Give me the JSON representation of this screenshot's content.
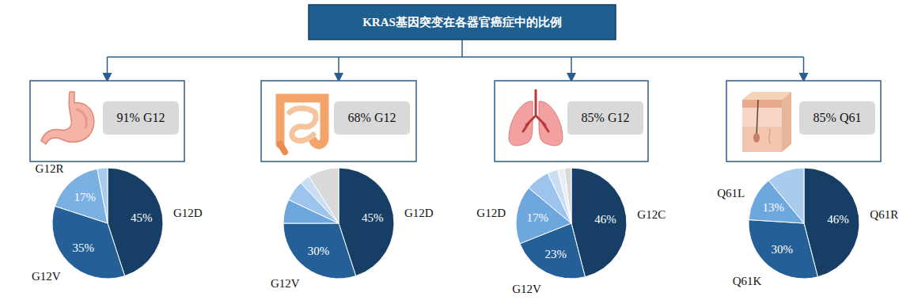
{
  "title": "KRAS基因突变在各器官癌症中的比例",
  "chart_data": [
    {
      "type": "pie",
      "title": "91% G12",
      "categories": [
        "G12D",
        "G12V",
        "G12R",
        null
      ],
      "values": [
        45,
        35,
        17,
        3
      ],
      "value_labels": [
        "45%",
        "35%",
        "17%",
        null
      ],
      "colors": [
        "#173f66",
        "#255f98",
        "#7ab1e2",
        "#a9cbee"
      ],
      "data_labels": true
    },
    {
      "type": "pie",
      "title": "68% G12",
      "categories": [
        "G12D",
        "G12V",
        null,
        null,
        null,
        null
      ],
      "values": [
        45,
        30,
        7,
        6,
        3,
        9
      ],
      "value_labels": [
        "45%",
        "30%",
        null,
        null,
        null,
        null
      ],
      "colors": [
        "#173f66",
        "#255f98",
        "#6da7de",
        "#9cc4ec",
        "#c9ddf3",
        "#d9d9d9"
      ],
      "data_labels": true
    },
    {
      "type": "pie",
      "title": "85% G12",
      "categories": [
        "G12C",
        "G12V",
        "G12D",
        null,
        null,
        null,
        null
      ],
      "values": [
        46,
        23,
        17,
        7,
        3,
        2,
        2
      ],
      "value_labels": [
        "46%",
        "23%",
        "17%",
        null,
        null,
        null,
        null
      ],
      "colors": [
        "#173f66",
        "#255f98",
        "#6da7de",
        "#9cc4ec",
        "#c9ddf3",
        "#e8eef6",
        "#d9d9d9"
      ],
      "data_labels": true
    },
    {
      "type": "pie",
      "title": "85% Q61",
      "categories": [
        "Q61R",
        "Q61K",
        "Q61L",
        null
      ],
      "values": [
        46,
        30,
        13,
        11
      ],
      "value_labels": [
        "46%",
        "30%",
        "13%",
        null
      ],
      "colors": [
        "#173f66",
        "#255f98",
        "#6da7de",
        "#a9cbee"
      ],
      "data_labels": true
    }
  ]
}
